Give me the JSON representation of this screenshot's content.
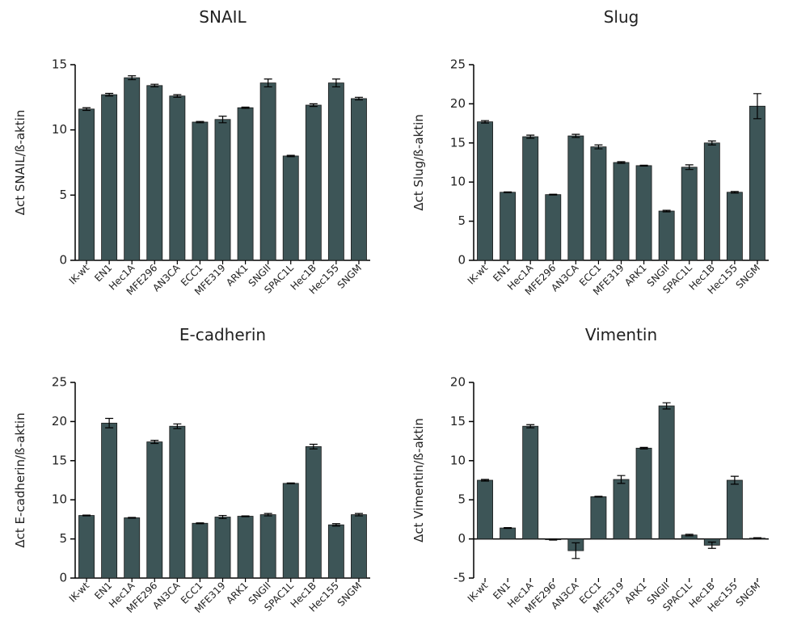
{
  "chart_data": [
    {
      "type": "bar",
      "title": "SNAIL",
      "ylabel": "Δct SNAIL/ß-aktin",
      "color": "#3d5557",
      "categories": [
        "IK-wt",
        "EN1",
        "Hec1A",
        "MFE296",
        "AN3CA",
        "ECC1",
        "MFE319",
        "ARK1",
        "SNGII",
        "SPAC1L",
        "Hec1B",
        "Hec155",
        "SNGM"
      ],
      "values": [
        11.6,
        12.7,
        14.0,
        13.4,
        12.6,
        10.6,
        10.8,
        11.7,
        13.6,
        8.0,
        11.9,
        13.6,
        12.4
      ],
      "errors": [
        0.1,
        0.1,
        0.15,
        0.1,
        0.1,
        0.05,
        0.25,
        0.05,
        0.3,
        0.05,
        0.1,
        0.3,
        0.1
      ],
      "ylim": [
        0,
        15
      ],
      "yticks": [
        0,
        5,
        10,
        15
      ]
    },
    {
      "type": "bar",
      "title": "Slug",
      "ylabel": "Δct Slug/ß-aktin",
      "color": "#3d5557",
      "categories": [
        "IK-wt",
        "EN1",
        "Hec1A",
        "MFE296",
        "AN3CA",
        "ECC1",
        "MFE319",
        "ARK1",
        "SNGII",
        "SPAC1L",
        "Hec1B",
        "Hec155",
        "SNGM"
      ],
      "values": [
        17.7,
        8.7,
        15.8,
        8.4,
        15.9,
        14.5,
        12.5,
        12.1,
        6.3,
        11.9,
        15.0,
        8.7,
        19.7
      ],
      "errors": [
        0.15,
        0.05,
        0.2,
        0.05,
        0.2,
        0.25,
        0.1,
        0.05,
        0.1,
        0.3,
        0.25,
        0.1,
        1.6
      ],
      "ylim": [
        0,
        25
      ],
      "yticks": [
        0,
        5,
        10,
        15,
        20,
        25
      ]
    },
    {
      "type": "bar",
      "title": "E-cadherin",
      "ylabel": "Δct E-cadherin/ß-aktin",
      "color": "#3d5557",
      "categories": [
        "IK-wt",
        "EN1",
        "Hec1A",
        "MFE296",
        "AN3CA",
        "ECC1",
        "MFE319",
        "ARK1",
        "SNGII",
        "SPAC1L",
        "Hec1B",
        "Hec155",
        "SNGM"
      ],
      "values": [
        8.0,
        19.8,
        7.7,
        17.4,
        19.4,
        7.0,
        7.8,
        7.9,
        8.1,
        12.1,
        16.8,
        6.8,
        8.1
      ],
      "errors": [
        0.05,
        0.6,
        0.05,
        0.2,
        0.3,
        0.05,
        0.2,
        0.05,
        0.15,
        0.05,
        0.3,
        0.15,
        0.15
      ],
      "ylim": [
        0,
        25
      ],
      "yticks": [
        0,
        5,
        10,
        15,
        20,
        25
      ]
    },
    {
      "type": "bar",
      "title": "Vimentin",
      "ylabel": "Δct Vimentin/ß-aktin",
      "color": "#3d5557",
      "categories": [
        "IK-wt",
        "EN1",
        "Hec1A",
        "MFE296",
        "AN3CA",
        "ECC1",
        "MFE319",
        "ARK1",
        "SNGII",
        "SPAC1L",
        "Hec1B",
        "Hec155",
        "SNGM"
      ],
      "values": [
        7.5,
        1.4,
        14.4,
        -0.1,
        -1.5,
        5.4,
        7.6,
        11.6,
        17.0,
        0.5,
        -0.8,
        7.5,
        0.1
      ],
      "errors": [
        0.1,
        0.05,
        0.2,
        0.05,
        1.0,
        0.05,
        0.5,
        0.1,
        0.4,
        0.1,
        0.4,
        0.5,
        0.05
      ],
      "ylim": [
        -5,
        20
      ],
      "yticks": [
        -5,
        0,
        5,
        10,
        15,
        20
      ]
    }
  ]
}
